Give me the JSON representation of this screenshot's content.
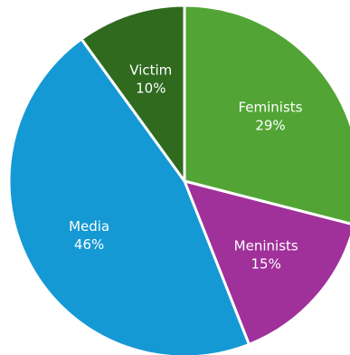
{
  "chart_data": {
    "type": "pie",
    "title": "",
    "start_angle_deg": 0,
    "direction": "clockwise",
    "slices": [
      {
        "label": "Feminists",
        "value": 29,
        "display": "29%",
        "color": "#52a535"
      },
      {
        "label": "Meninists",
        "value": 15,
        "display": "15%",
        "color": "#a0309a"
      },
      {
        "label": "Media",
        "value": 46,
        "display": "46%",
        "color": "#1599d4"
      },
      {
        "label": "Victim",
        "value": 10,
        "display": "10%",
        "color": "#2f6a1f"
      }
    ]
  }
}
